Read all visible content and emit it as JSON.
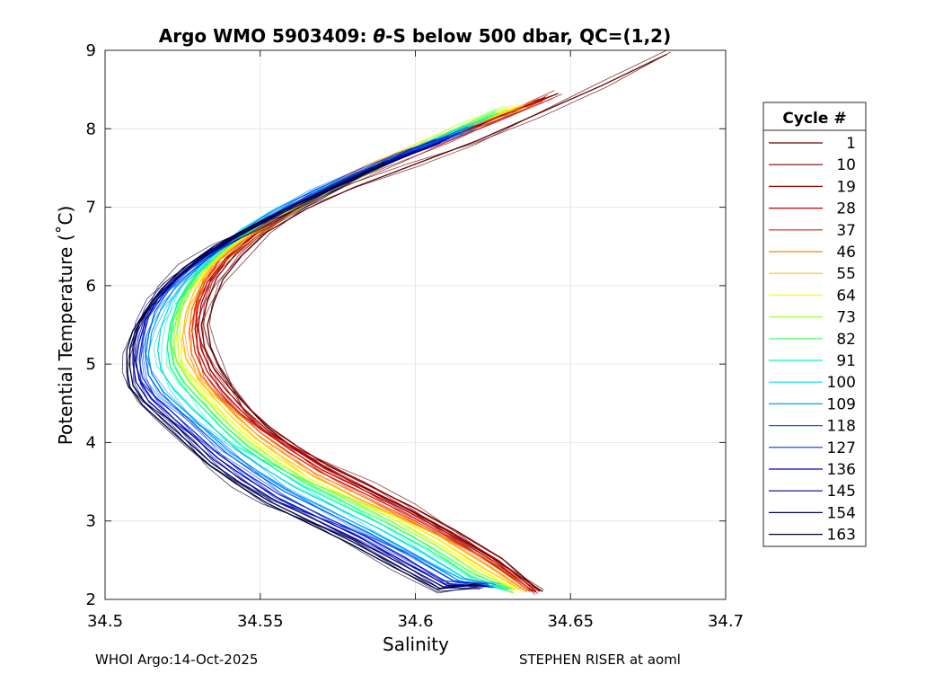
{
  "chart_data": {
    "type": "line",
    "title_prefix": "Argo WMO 5903409: ",
    "title_theta": "θ",
    "title_suffix": "-S below 500 dbar,  QC=(1,2)",
    "xlabel": "Salinity",
    "ylabel": "Potential Temperature (˚C)",
    "xlim": [
      34.5,
      34.7
    ],
    "ylim": [
      2,
      9
    ],
    "xticks": [
      34.5,
      34.55,
      34.6,
      34.65,
      34.7
    ],
    "xtick_labels": [
      "34.5",
      "34.55",
      "34.6",
      "34.65",
      "34.7"
    ],
    "yticks": [
      2,
      3,
      4,
      5,
      6,
      7,
      8,
      9
    ],
    "ytick_labels": [
      "2",
      "3",
      "4",
      "5",
      "6",
      "7",
      "8",
      "9"
    ],
    "grid": true,
    "legend_title": "Cycle #",
    "legend_position": "right-outside",
    "series": [
      {
        "name": "1",
        "color": "#5a0000",
        "salinity": [
          34.681,
          34.66,
          34.64,
          34.62,
          34.6,
          34.58,
          34.565,
          34.552,
          34.544,
          34.538,
          34.535,
          34.533,
          34.534,
          34.537,
          34.541,
          34.546,
          34.552,
          34.56,
          34.57,
          34.582,
          34.596,
          34.61,
          34.625,
          34.641
        ],
        "theta": [
          8.95,
          8.55,
          8.2,
          7.85,
          7.55,
          7.25,
          6.98,
          6.68,
          6.38,
          6.08,
          5.78,
          5.5,
          5.22,
          4.95,
          4.7,
          4.45,
          4.2,
          3.95,
          3.7,
          3.45,
          3.18,
          2.88,
          2.52,
          2.1
        ]
      },
      {
        "name": "10",
        "color": "#800000",
        "salinity": [
          34.646,
          34.63,
          34.612,
          34.594,
          34.578,
          34.563,
          34.551,
          34.542,
          34.536,
          34.533,
          34.531,
          34.532,
          34.535,
          34.54,
          34.546,
          34.553,
          34.562,
          34.572,
          34.585,
          34.599,
          34.613,
          34.628,
          34.64
        ],
        "theta": [
          8.45,
          8.2,
          7.9,
          7.6,
          7.3,
          7.0,
          6.7,
          6.4,
          6.1,
          5.8,
          5.5,
          5.22,
          4.95,
          4.7,
          4.45,
          4.2,
          3.95,
          3.7,
          3.45,
          3.18,
          2.88,
          2.52,
          2.1
        ]
      },
      {
        "name": "19",
        "color": "#a00000",
        "salinity": [
          34.644,
          34.628,
          34.61,
          34.592,
          34.576,
          34.561,
          34.549,
          34.54,
          34.534,
          34.531,
          34.53,
          34.531,
          34.534,
          34.539,
          34.545,
          34.552,
          34.561,
          34.571,
          34.584,
          34.598,
          34.612,
          34.627,
          34.639
        ],
        "theta": [
          8.42,
          8.17,
          7.87,
          7.57,
          7.27,
          6.97,
          6.67,
          6.37,
          6.07,
          5.77,
          5.47,
          5.19,
          4.92,
          4.67,
          4.42,
          4.17,
          3.92,
          3.67,
          3.42,
          3.15,
          2.85,
          2.49,
          2.1
        ]
      },
      {
        "name": "28",
        "color": "#c00000",
        "salinity": [
          34.642,
          34.626,
          34.608,
          34.59,
          34.574,
          34.559,
          34.548,
          34.539,
          34.533,
          34.53,
          34.529,
          34.53,
          34.533,
          34.538,
          34.544,
          34.551,
          34.56,
          34.57,
          34.583,
          34.597,
          34.611,
          34.626,
          34.638
        ],
        "theta": [
          8.4,
          8.15,
          7.85,
          7.55,
          7.25,
          6.95,
          6.65,
          6.35,
          6.05,
          5.75,
          5.45,
          5.17,
          4.9,
          4.65,
          4.4,
          4.15,
          3.9,
          3.65,
          3.4,
          3.13,
          2.83,
          2.47,
          2.1
        ]
      },
      {
        "name": "37",
        "color": "#e02000",
        "salinity": [
          34.64,
          34.624,
          34.606,
          34.588,
          34.572,
          34.557,
          34.546,
          34.537,
          34.532,
          34.529,
          34.528,
          34.529,
          34.532,
          34.537,
          34.543,
          34.55,
          34.559,
          34.569,
          34.582,
          34.596,
          34.61,
          34.625,
          34.637
        ],
        "theta": [
          8.38,
          8.13,
          7.83,
          7.53,
          7.23,
          6.93,
          6.63,
          6.33,
          6.03,
          5.73,
          5.43,
          5.15,
          4.88,
          4.63,
          4.38,
          4.13,
          3.88,
          3.63,
          3.38,
          3.11,
          2.81,
          2.45,
          2.1
        ]
      },
      {
        "name": "46",
        "color": "#ff8000",
        "salinity": [
          34.638,
          34.622,
          34.604,
          34.586,
          34.57,
          34.556,
          34.545,
          34.536,
          34.531,
          34.528,
          34.527,
          34.528,
          34.531,
          34.536,
          34.542,
          34.549,
          34.558,
          34.568,
          34.581,
          34.595,
          34.609,
          34.624,
          34.636
        ],
        "theta": [
          8.35,
          8.1,
          7.8,
          7.5,
          7.2,
          6.9,
          6.6,
          6.3,
          6.0,
          5.7,
          5.4,
          5.12,
          4.85,
          4.6,
          4.35,
          4.1,
          3.85,
          3.6,
          3.35,
          3.08,
          2.78,
          2.42,
          2.1
        ]
      },
      {
        "name": "55",
        "color": "#ffc000",
        "salinity": [
          34.635,
          34.619,
          34.601,
          34.583,
          34.568,
          34.554,
          34.543,
          34.534,
          34.529,
          34.526,
          34.525,
          34.526,
          34.53,
          34.535,
          34.541,
          34.548,
          34.557,
          34.567,
          34.58,
          34.594,
          34.608,
          34.622,
          34.634
        ],
        "theta": [
          8.3,
          8.05,
          7.75,
          7.45,
          7.15,
          6.85,
          6.55,
          6.25,
          5.95,
          5.65,
          5.35,
          5.08,
          4.82,
          4.57,
          4.32,
          4.07,
          3.82,
          3.57,
          3.32,
          3.05,
          2.75,
          2.4,
          2.12
        ]
      },
      {
        "name": "64",
        "color": "#ffff00",
        "salinity": [
          34.632,
          34.616,
          34.598,
          34.581,
          34.566,
          34.552,
          34.541,
          34.533,
          34.527,
          34.524,
          34.523,
          34.524,
          34.528,
          34.533,
          34.54,
          34.547,
          34.556,
          34.566,
          34.579,
          34.593,
          34.607,
          34.621,
          34.633
        ],
        "theta": [
          8.27,
          8.02,
          7.72,
          7.42,
          7.12,
          6.82,
          6.52,
          6.22,
          5.92,
          5.62,
          5.32,
          5.05,
          4.79,
          4.54,
          4.29,
          4.04,
          3.79,
          3.54,
          3.29,
          3.02,
          2.72,
          2.37,
          2.12
        ]
      },
      {
        "name": "73",
        "color": "#a0ff40",
        "salinity": [
          34.63,
          34.614,
          34.596,
          34.579,
          34.564,
          34.55,
          34.54,
          34.532,
          34.526,
          34.523,
          34.522,
          34.523,
          34.527,
          34.533,
          34.539,
          34.546,
          34.555,
          34.565,
          34.578,
          34.592,
          34.606,
          34.62,
          34.632
        ],
        "theta": [
          8.25,
          8.0,
          7.7,
          7.4,
          7.1,
          6.8,
          6.5,
          6.2,
          5.9,
          5.6,
          5.3,
          5.03,
          4.77,
          4.52,
          4.27,
          4.02,
          3.77,
          3.52,
          3.27,
          3.0,
          2.7,
          2.35,
          2.12
        ]
      },
      {
        "name": "82",
        "color": "#40ff60",
        "salinity": [
          34.627,
          34.611,
          34.594,
          34.577,
          34.562,
          34.549,
          34.538,
          34.53,
          34.525,
          34.522,
          34.521,
          34.522,
          34.526,
          34.532,
          34.538,
          34.545,
          34.554,
          34.564,
          34.577,
          34.591,
          34.605,
          34.619,
          34.631
        ],
        "theta": [
          8.2,
          7.95,
          7.65,
          7.35,
          7.05,
          6.75,
          6.45,
          6.15,
          5.85,
          5.55,
          5.25,
          4.99,
          4.74,
          4.49,
          4.24,
          3.99,
          3.74,
          3.49,
          3.24,
          2.97,
          2.67,
          2.32,
          2.13
        ]
      },
      {
        "name": "91",
        "color": "#00ffa0",
        "salinity": [
          34.625,
          34.609,
          34.592,
          34.575,
          34.56,
          34.547,
          34.537,
          34.529,
          34.524,
          34.521,
          34.52,
          34.521,
          34.525,
          34.531,
          34.537,
          34.544,
          34.553,
          34.563,
          34.576,
          34.59,
          34.604,
          34.618,
          34.63
        ],
        "theta": [
          8.17,
          7.92,
          7.62,
          7.32,
          7.02,
          6.72,
          6.42,
          6.12,
          5.82,
          5.52,
          5.22,
          4.96,
          4.71,
          4.46,
          4.21,
          3.96,
          3.71,
          3.46,
          3.21,
          2.94,
          2.64,
          2.29,
          2.13
        ]
      },
      {
        "name": "100",
        "color": "#00e0e0",
        "salinity": [
          34.622,
          34.606,
          34.589,
          34.572,
          34.557,
          34.544,
          34.534,
          34.526,
          34.521,
          34.518,
          34.517,
          34.518,
          34.522,
          34.528,
          34.535,
          34.542,
          34.551,
          34.561,
          34.574,
          34.588,
          34.602,
          34.616,
          34.628
        ],
        "theta": [
          8.12,
          7.87,
          7.57,
          7.27,
          6.97,
          6.67,
          6.37,
          6.07,
          5.77,
          5.47,
          5.18,
          4.93,
          4.68,
          4.43,
          4.18,
          3.93,
          3.68,
          3.43,
          3.18,
          2.91,
          2.61,
          2.27,
          2.13
        ]
      },
      {
        "name": "109",
        "color": "#00a0ff",
        "salinity": [
          34.619,
          34.603,
          34.586,
          34.569,
          34.554,
          34.541,
          34.531,
          34.523,
          34.518,
          34.515,
          34.514,
          34.515,
          34.519,
          34.526,
          34.533,
          34.54,
          34.549,
          34.559,
          34.572,
          34.586,
          34.6,
          34.614,
          34.626
        ],
        "theta": [
          8.05,
          7.8,
          7.5,
          7.2,
          6.9,
          6.6,
          6.3,
          6.0,
          5.7,
          5.4,
          5.12,
          4.88,
          4.64,
          4.39,
          4.14,
          3.89,
          3.64,
          3.39,
          3.14,
          2.87,
          2.57,
          2.24,
          2.15
        ]
      },
      {
        "name": "118",
        "color": "#0060ff",
        "salinity": [
          34.617,
          34.601,
          34.584,
          34.567,
          34.552,
          34.539,
          34.529,
          34.521,
          34.516,
          34.514,
          34.513,
          34.514,
          34.518,
          34.525,
          34.532,
          34.539,
          34.548,
          34.558,
          34.571,
          34.585,
          34.599,
          34.613,
          34.625
        ],
        "theta": [
          8.02,
          7.77,
          7.47,
          7.17,
          6.87,
          6.57,
          6.27,
          5.97,
          5.67,
          5.37,
          5.1,
          4.86,
          4.62,
          4.37,
          4.12,
          3.87,
          3.62,
          3.37,
          3.12,
          2.85,
          2.55,
          2.22,
          2.15
        ]
      },
      {
        "name": "127",
        "color": "#0030e0",
        "salinity": [
          34.614,
          34.598,
          34.581,
          34.564,
          34.549,
          34.536,
          34.526,
          34.519,
          34.514,
          34.512,
          34.511,
          34.512,
          34.516,
          34.523,
          34.53,
          34.537,
          34.546,
          34.556,
          34.569,
          34.583,
          34.597,
          34.611,
          34.624
        ],
        "theta": [
          7.95,
          7.7,
          7.4,
          7.1,
          6.8,
          6.5,
          6.2,
          5.9,
          5.6,
          5.32,
          5.06,
          4.83,
          4.59,
          4.34,
          4.09,
          3.84,
          3.59,
          3.34,
          3.09,
          2.82,
          2.52,
          2.2,
          2.16
        ]
      },
      {
        "name": "136",
        "color": "#0000c0",
        "salinity": [
          34.611,
          34.595,
          34.578,
          34.561,
          34.546,
          34.533,
          34.524,
          34.517,
          34.513,
          34.511,
          34.51,
          34.511,
          34.515,
          34.522,
          34.529,
          34.536,
          34.545,
          34.555,
          34.568,
          34.582,
          34.596,
          34.61,
          34.623
        ],
        "theta": [
          7.88,
          7.63,
          7.33,
          7.03,
          6.73,
          6.43,
          6.13,
          5.83,
          5.55,
          5.28,
          5.03,
          4.8,
          4.56,
          4.31,
          4.06,
          3.81,
          3.56,
          3.31,
          3.06,
          2.79,
          2.49,
          2.18,
          2.17
        ]
      },
      {
        "name": "145",
        "color": "#000090",
        "salinity": [
          34.608,
          34.592,
          34.575,
          34.558,
          34.543,
          34.531,
          34.522,
          34.515,
          34.511,
          34.509,
          34.509,
          34.51,
          34.514,
          34.521,
          34.528,
          34.535,
          34.544,
          34.554,
          34.567,
          34.581,
          34.595,
          34.609,
          34.622
        ],
        "theta": [
          7.82,
          7.57,
          7.27,
          6.97,
          6.67,
          6.37,
          6.07,
          5.79,
          5.52,
          5.25,
          5.0,
          4.77,
          4.53,
          4.28,
          4.03,
          3.78,
          3.53,
          3.28,
          3.03,
          2.76,
          2.46,
          2.16,
          2.18
        ]
      },
      {
        "name": "154",
        "color": "#000060",
        "salinity": [
          34.6,
          34.585,
          34.569,
          34.553,
          34.539,
          34.528,
          34.52,
          34.514,
          34.51,
          34.508,
          34.508,
          34.509,
          34.513,
          34.52,
          34.527,
          34.534,
          34.543,
          34.553,
          34.566,
          34.58,
          34.594,
          34.608,
          34.621
        ],
        "theta": [
          7.7,
          7.45,
          7.15,
          6.85,
          6.55,
          6.25,
          5.97,
          5.7,
          5.45,
          5.2,
          4.96,
          4.73,
          4.5,
          4.25,
          4.0,
          3.75,
          3.5,
          3.25,
          3.0,
          2.73,
          2.43,
          2.14,
          2.19
        ]
      },
      {
        "name": "163",
        "color": "#000030",
        "salinity": [
          34.59,
          34.577,
          34.562,
          34.548,
          34.535,
          34.525,
          34.518,
          34.513,
          34.509,
          34.507,
          34.507,
          34.508,
          34.512,
          34.519,
          34.526,
          34.533,
          34.542,
          34.552,
          34.565,
          34.579,
          34.593,
          34.607,
          34.62
        ],
        "theta": [
          7.55,
          7.32,
          7.05,
          6.78,
          6.5,
          6.22,
          5.95,
          5.68,
          5.43,
          5.18,
          4.94,
          4.71,
          4.48,
          4.23,
          3.98,
          3.73,
          3.48,
          3.23,
          2.98,
          2.71,
          2.41,
          2.13,
          2.2
        ]
      }
    ]
  },
  "footer": {
    "left": "WHOI Argo:14-Oct-2025",
    "right": "STEPHEN RISER at aoml"
  }
}
